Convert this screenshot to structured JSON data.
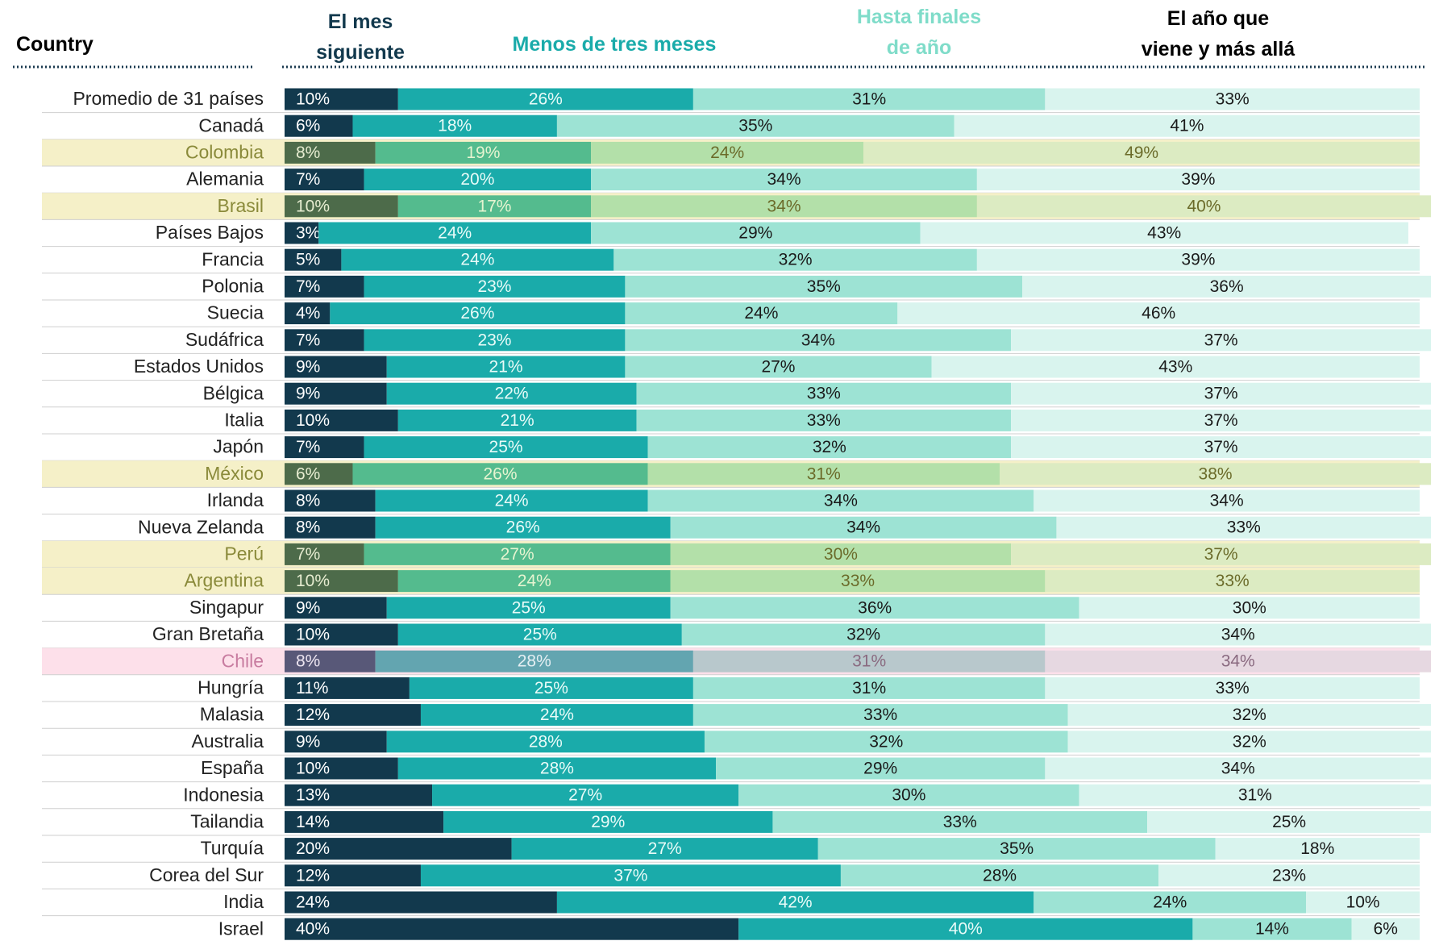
{
  "chart_data": {
    "type": "stacked_barh",
    "category_label": "Country",
    "categories": [
      "Promedio de 31 países",
      "Canadá",
      "Colombia",
      "Alemania",
      "Brasil",
      "Países Bajos",
      "Francia",
      "Polonia",
      "Suecia",
      "Sudáfrica",
      "Estados Unidos",
      "Bélgica",
      "Italia",
      "Japón",
      "México",
      "Irlanda",
      "Nueva Zelanda",
      "Perú",
      "Argentina",
      "Singapur",
      "Gran Bretaña",
      "Chile",
      "Hungría",
      "Malasia",
      "Australia",
      "España",
      "Indonesia",
      "Tailandia",
      "Turquía",
      "Corea del Sur",
      "India",
      "Israel"
    ],
    "xlim": [
      0,
      100
    ],
    "series": [
      {
        "name": "El mes siguiente",
        "color": "#12394d",
        "header_color": "#12394d",
        "text_color": "#ffffff",
        "values": [
          10,
          6,
          8,
          7,
          10,
          3,
          5,
          7,
          4,
          7,
          9,
          9,
          10,
          7,
          6,
          8,
          8,
          7,
          10,
          9,
          10,
          8,
          11,
          12,
          9,
          10,
          13,
          14,
          20,
          12,
          24,
          40
        ],
        "value_labels": [
          "10%",
          "6%",
          "8%",
          "7%",
          "10%",
          "3%",
          "5%",
          "7%",
          "4%",
          "7%",
          "9%",
          "9%",
          "10%",
          "7%",
          "6%",
          "8%",
          "8%",
          "7%",
          "10%",
          "9%",
          "10%",
          "8%",
          "11%",
          "12%",
          "9%",
          "10%",
          "13%",
          "14%",
          "20%",
          "12%",
          "24%",
          "40%"
        ]
      },
      {
        "name": "Menos de tres meses",
        "color": "#1aabaa",
        "header_color": "#1aabaa",
        "text_color": "#e8fbf8",
        "values": [
          26,
          18,
          19,
          20,
          17,
          24,
          24,
          23,
          26,
          23,
          21,
          22,
          21,
          25,
          26,
          24,
          26,
          27,
          24,
          25,
          25,
          28,
          25,
          24,
          28,
          28,
          27,
          29,
          27,
          37,
          42,
          40
        ],
        "value_labels": [
          "26%",
          "18%",
          "19%",
          "20%",
          "17%",
          "24%",
          "24%",
          "23%",
          "26%",
          "23%",
          "21%",
          "22%",
          "21%",
          "25%",
          "26%",
          "24%",
          "26%",
          "27%",
          "24%",
          "25%",
          "25%",
          "28%",
          "25%",
          "24%",
          "28%",
          "28%",
          "27%",
          "29%",
          "27%",
          "37%",
          "42%",
          "40%"
        ]
      },
      {
        "name": "Hasta finales de año",
        "color": "#9de3d4",
        "header_color": "#7fdcc9",
        "text_color": "#1a1a1a",
        "values": [
          31,
          35,
          24,
          34,
          34,
          29,
          32,
          35,
          24,
          34,
          27,
          33,
          33,
          32,
          31,
          34,
          34,
          30,
          33,
          36,
          32,
          31,
          31,
          33,
          32,
          29,
          30,
          33,
          35,
          28,
          24,
          14
        ],
        "value_labels": [
          "31%",
          "35%",
          "24%",
          "34%",
          "34%",
          "29%",
          "32%",
          "35%",
          "24%",
          "34%",
          "27%",
          "33%",
          "33%",
          "32%",
          "31%",
          "34%",
          "34%",
          "30%",
          "33%",
          "36%",
          "32%",
          "31%",
          "31%",
          "33%",
          "32%",
          "29%",
          "30%",
          "33%",
          "35%",
          "28%",
          "24%",
          "14%"
        ]
      },
      {
        "name": "El año que viene y más allá",
        "color": "#d9f4ee",
        "header_color": "#000000",
        "text_color": "#1a1a1a",
        "values": [
          33,
          41,
          49,
          39,
          40,
          43,
          39,
          36,
          46,
          37,
          43,
          37,
          37,
          37,
          38,
          34,
          33,
          37,
          33,
          30,
          34,
          34,
          33,
          32,
          32,
          34,
          31,
          25,
          18,
          23,
          10,
          6
        ],
        "value_labels": [
          "33%",
          "41%",
          "49%",
          "39%",
          "40%",
          "43%",
          "39%",
          "36%",
          "46%",
          "37%",
          "43%",
          "37%",
          "37%",
          "37%",
          "38%",
          "34%",
          "33%",
          "37%",
          "33%",
          "30%",
          "34%",
          "34%",
          "33%",
          "32%",
          "32%",
          "34%",
          "31%",
          "25%",
          "18%",
          "23%",
          "10%",
          "6%"
        ]
      }
    ],
    "row_colors": [
      null,
      null,
      {
        "background": "#f5f0c8",
        "label": "#8a8a3a",
        "segments": [
          "#4d6b4a",
          "#54bb8e",
          "#b3e0a9",
          "#dcebc2"
        ],
        "text": [
          "#e6ecd0",
          "#e6f4d0",
          "#6b6b2a",
          "#6b6b2a"
        ]
      },
      null,
      {
        "background": "#f5f0c8",
        "label": "#8a8a3a",
        "segments": [
          "#4d6b4a",
          "#54bb8e",
          "#b3e0a9",
          "#dcebc2"
        ],
        "text": [
          "#e6ecd0",
          "#e6f4d0",
          "#6b6b2a",
          "#6b6b2a"
        ]
      },
      null,
      null,
      null,
      null,
      null,
      null,
      null,
      null,
      null,
      {
        "background": "#f5f0c8",
        "label": "#8a8a3a",
        "segments": [
          "#4d6b4a",
          "#54bb8e",
          "#b3e0a9",
          "#dcebc2"
        ],
        "text": [
          "#e6ecd0",
          "#e6f4d0",
          "#6b6b2a",
          "#6b6b2a"
        ]
      },
      null,
      null,
      {
        "background": "#f5f0c8",
        "label": "#8a8a3a",
        "segments": [
          "#4d6b4a",
          "#54bb8e",
          "#b3e0a9",
          "#dcebc2"
        ],
        "text": [
          "#e6ecd0",
          "#e6f4d0",
          "#6b6b2a",
          "#6b6b2a"
        ]
      },
      {
        "background": "#f5f0c8",
        "label": "#8a8a3a",
        "segments": [
          "#4d6b4a",
          "#54bb8e",
          "#b3e0a9",
          "#dcebc2"
        ],
        "text": [
          "#e6ecd0",
          "#e6f4d0",
          "#6b6b2a",
          "#6b6b2a"
        ]
      },
      null,
      null,
      {
        "background": "#fde0ea",
        "label": "#c87ca0",
        "segments": [
          "#585878",
          "#63a5b0",
          "#b8c8cc",
          "#e6d8e1"
        ],
        "text": [
          "#ece4f0",
          "#e4eef2",
          "#8a6a80",
          "#8a6a80"
        ]
      },
      null,
      null,
      null,
      null,
      null,
      null,
      null,
      null,
      null,
      null
    ]
  }
}
